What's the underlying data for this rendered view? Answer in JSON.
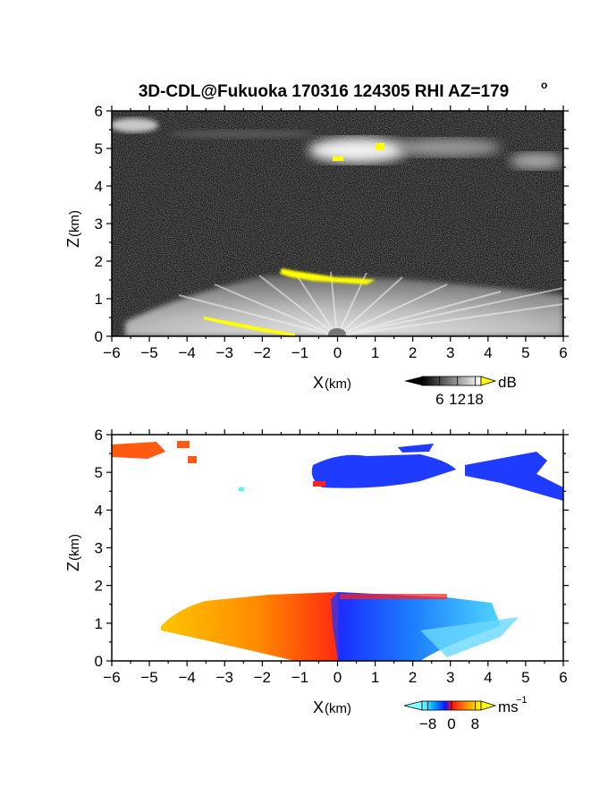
{
  "figure": {
    "title": "3D-CDL@Fukuoka 170316 124305 RHI AZ=179",
    "title_degree": "o"
  },
  "chart_data": [
    {
      "type": "heatmap",
      "panel": "top",
      "variable_unit": "dB",
      "xlabel_main": "X",
      "xlabel_unit": "(km)",
      "ylabel_main": "Z",
      "ylabel_unit": "(km)",
      "xlim": [
        -6,
        6
      ],
      "ylim": [
        0,
        6
      ],
      "xticks": [
        "-6",
        "-5",
        "-4",
        "-3",
        "-2",
        "-1",
        "0",
        "1",
        "2",
        "3",
        "4",
        "5",
        "6"
      ],
      "yticks": [
        "0",
        "1",
        "2",
        "3",
        "4",
        "5",
        "6"
      ],
      "colorbar": {
        "ticks": [
          "6",
          "12",
          "18"
        ],
        "unit": "dB",
        "range": [
          0,
          20
        ]
      },
      "features": [
        {
          "name": "boundary-layer-fan",
          "x": [
            -6.0,
            6.0
          ],
          "z": [
            0.0,
            1.6
          ],
          "value_dB": [
            6,
            16
          ]
        },
        {
          "name": "cloud-layer-top",
          "x": [
            -0.6,
            1.8
          ],
          "z": [
            4.55,
            5.25
          ],
          "value_dB": [
            10,
            20
          ]
        },
        {
          "name": "cloud-layer-left",
          "x": [
            -5.9,
            -4.6
          ],
          "z": [
            5.45,
            5.8
          ],
          "value_dB": [
            8,
            12
          ]
        }
      ],
      "colors": {
        "low": "#000000",
        "high": "#ffffff",
        "saturated": "#ffff00"
      }
    },
    {
      "type": "heatmap",
      "panel": "bottom",
      "variable_unit": "ms",
      "unit_exponent": "−1",
      "xlabel_main": "X",
      "xlabel_unit": "(km)",
      "ylabel_main": "Z",
      "ylabel_unit": "(km)",
      "xlim": [
        -6,
        6
      ],
      "ylim": [
        0,
        6
      ],
      "xticks": [
        "-6",
        "-5",
        "-4",
        "-3",
        "-2",
        "-1",
        "0",
        "1",
        "2",
        "3",
        "4",
        "5",
        "6"
      ],
      "yticks": [
        "0",
        "1",
        "2",
        "3",
        "4",
        "5",
        "6"
      ],
      "colorbar": {
        "ticks": [
          "−8",
          "0",
          "8"
        ],
        "unit": "ms",
        "range": [
          -10,
          10
        ]
      },
      "features": [
        {
          "name": "receding-flow",
          "x": [
            -4.6,
            0.0
          ],
          "z": [
            0.0,
            1.6
          ],
          "velocity_ms": [
            1,
            8
          ]
        },
        {
          "name": "approaching-flow",
          "x": [
            0.0,
            4.3
          ],
          "z": [
            0.0,
            1.65
          ],
          "velocity_ms": [
            -8,
            -1
          ]
        },
        {
          "name": "upper-approaching",
          "x": [
            -0.7,
            6.0
          ],
          "z": [
            4.3,
            5.6
          ],
          "velocity_ms": [
            -9,
            -6
          ]
        },
        {
          "name": "upper-receding",
          "x": [
            -6.0,
            -4.2
          ],
          "z": [
            5.35,
            5.8
          ],
          "velocity_ms": [
            4,
            6
          ]
        }
      ],
      "colors": {
        "negative": "#1f3bff",
        "zero": "#ff1e1e",
        "positive": "#ffcc00"
      }
    }
  ]
}
